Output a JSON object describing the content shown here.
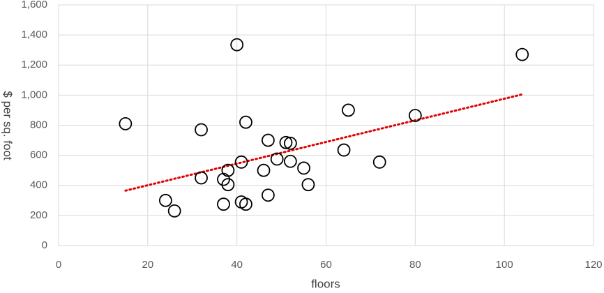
{
  "chart_data": {
    "type": "scatter",
    "x_label": "floors",
    "y_label": "$ per sq. foot",
    "series": [
      {
        "color": "#000000",
        "x": [
          15,
          24,
          26,
          32,
          32,
          37,
          37,
          38,
          38,
          40,
          41,
          41,
          42,
          42,
          46,
          47,
          47,
          49,
          51,
          52,
          52,
          55,
          56,
          64,
          65,
          72,
          80,
          104
        ],
        "values": [
          810,
          300,
          230,
          770,
          450,
          440,
          275,
          500,
          405,
          1335,
          290,
          555,
          275,
          820,
          500,
          700,
          335,
          575,
          685,
          680,
          560,
          515,
          405,
          635,
          900,
          555,
          865,
          1270
        ]
      }
    ],
    "trendline": {
      "color": "#e00000",
      "x": [
        15,
        104
      ],
      "values": [
        365,
        1005
      ]
    },
    "xlim": [
      0,
      120
    ],
    "xticks": [
      0,
      20,
      40,
      60,
      80,
      100,
      120
    ],
    "ylim": [
      0,
      1600
    ],
    "yticks": [
      0,
      200,
      400,
      600,
      800,
      {
        "value": 1000,
        "label": "1,000"
      },
      {
        "value": 1200,
        "label": "1,200"
      },
      {
        "value": 1400,
        "label": "1,400"
      },
      {
        "value": 1600,
        "label": "1,600"
      }
    ],
    "grid": true
  }
}
